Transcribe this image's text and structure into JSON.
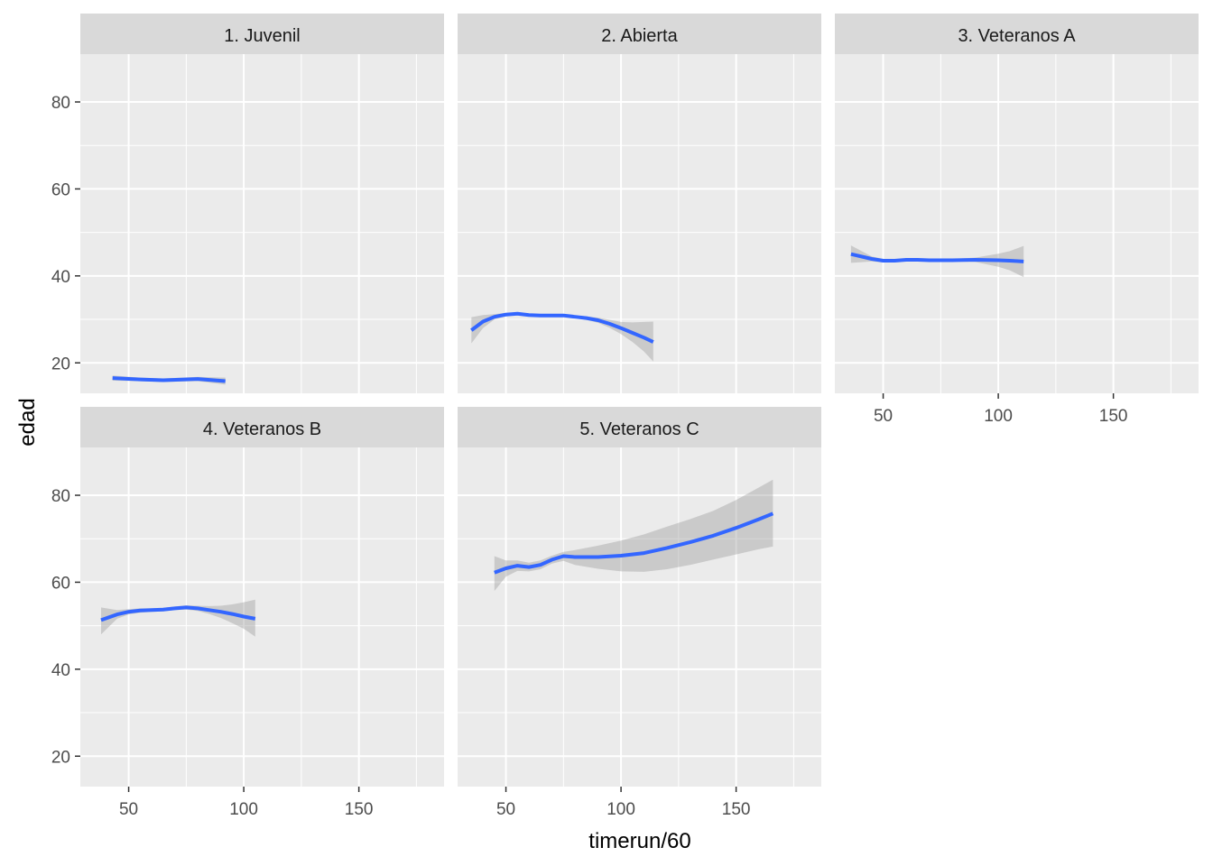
{
  "chart_data": {
    "type": "line",
    "xlabel": "timerun/60",
    "ylabel": "edad",
    "xlim": [
      29,
      187
    ],
    "ylim": [
      13,
      91
    ],
    "x_ticks": [
      50,
      100,
      150
    ],
    "y_ticks": [
      20,
      40,
      60,
      80
    ],
    "layout": "facet-wrap 3 columns, 2 rows",
    "grid": true,
    "colors": {
      "panel_bg": "#ebebeb",
      "strip_bg": "#d9d9d9",
      "grid": "#ffffff",
      "line": "#3366ff",
      "ribbon": "#999999",
      "tick_text": "#4d4d4d"
    },
    "panels": [
      {
        "name": "1. Juvenil",
        "x": [
          43,
          55,
          65,
          80,
          92
        ],
        "y": [
          16.5,
          16.2,
          16.0,
          16.3,
          15.8
        ],
        "lower": [
          15.9,
          15.8,
          15.6,
          15.8,
          15.0
        ],
        "upper": [
          17.1,
          16.6,
          16.4,
          16.8,
          16.6
        ]
      },
      {
        "name": "2. Abierta",
        "x": [
          35,
          40,
          45,
          50,
          55,
          60,
          65,
          70,
          75,
          80,
          85,
          90,
          95,
          100,
          105,
          110,
          114
        ],
        "y": [
          27.5,
          29.5,
          30.6,
          31.1,
          31.3,
          31.0,
          30.9,
          30.9,
          30.9,
          30.6,
          30.3,
          29.8,
          29.0,
          28.0,
          26.9,
          25.8,
          24.8
        ],
        "lower": [
          24.5,
          28.0,
          30.0,
          30.7,
          31.0,
          30.7,
          30.6,
          30.6,
          30.6,
          30.3,
          29.9,
          29.2,
          28.1,
          26.6,
          24.8,
          22.6,
          20.3
        ],
        "upper": [
          30.5,
          31.0,
          31.2,
          31.5,
          31.6,
          31.3,
          31.2,
          31.2,
          31.2,
          30.9,
          30.7,
          30.4,
          29.9,
          29.4,
          29.3,
          29.4,
          29.5
        ]
      },
      {
        "name": "3. Veteranos A",
        "x": [
          36,
          45,
          50,
          55,
          60,
          65,
          70,
          80,
          90,
          100,
          105,
          111
        ],
        "y": [
          45.0,
          43.9,
          43.5,
          43.5,
          43.7,
          43.7,
          43.6,
          43.6,
          43.7,
          43.6,
          43.5,
          43.3
        ],
        "lower": [
          43.0,
          43.3,
          43.1,
          43.2,
          43.4,
          43.4,
          43.3,
          43.3,
          43.2,
          42.1,
          41.3,
          39.7
        ],
        "upper": [
          47.0,
          44.5,
          43.9,
          43.8,
          44.0,
          44.0,
          43.9,
          43.9,
          44.2,
          45.1,
          45.7,
          46.9
        ]
      },
      {
        "name": "4. Veteranos B",
        "x": [
          38,
          45,
          50,
          55,
          60,
          65,
          70,
          75,
          80,
          85,
          90,
          95,
          100,
          105
        ],
        "y": [
          51.3,
          52.6,
          53.2,
          53.5,
          53.6,
          53.7,
          54.0,
          54.2,
          54.0,
          53.6,
          53.2,
          52.7,
          52.1,
          51.6
        ],
        "lower": [
          48.0,
          51.6,
          52.6,
          53.0,
          53.2,
          53.3,
          53.6,
          53.7,
          53.4,
          52.7,
          51.8,
          50.6,
          49.3,
          47.5
        ],
        "upper": [
          54.2,
          53.6,
          53.8,
          54.0,
          54.0,
          54.1,
          54.4,
          54.7,
          54.6,
          54.5,
          54.6,
          54.9,
          55.4,
          56.0
        ]
      },
      {
        "name": "5. Veteranos C",
        "x": [
          45,
          50,
          55,
          60,
          65,
          70,
          75,
          80,
          90,
          100,
          110,
          120,
          130,
          140,
          150,
          160,
          166
        ],
        "y": [
          62.2,
          63.2,
          63.8,
          63.5,
          64.0,
          65.2,
          66.0,
          65.8,
          65.8,
          66.1,
          66.7,
          67.9,
          69.2,
          70.7,
          72.5,
          74.5,
          75.8
        ],
        "lower": [
          58.0,
          61.3,
          62.6,
          62.5,
          63.0,
          64.3,
          64.9,
          64.0,
          63.1,
          62.5,
          62.4,
          63.0,
          64.0,
          65.2,
          66.4,
          67.6,
          68.2
        ],
        "upper": [
          66.0,
          65.0,
          65.0,
          64.5,
          65.0,
          66.1,
          67.0,
          67.4,
          68.4,
          69.6,
          71.0,
          72.8,
          74.5,
          76.4,
          78.9,
          81.8,
          83.6
        ]
      }
    ]
  }
}
